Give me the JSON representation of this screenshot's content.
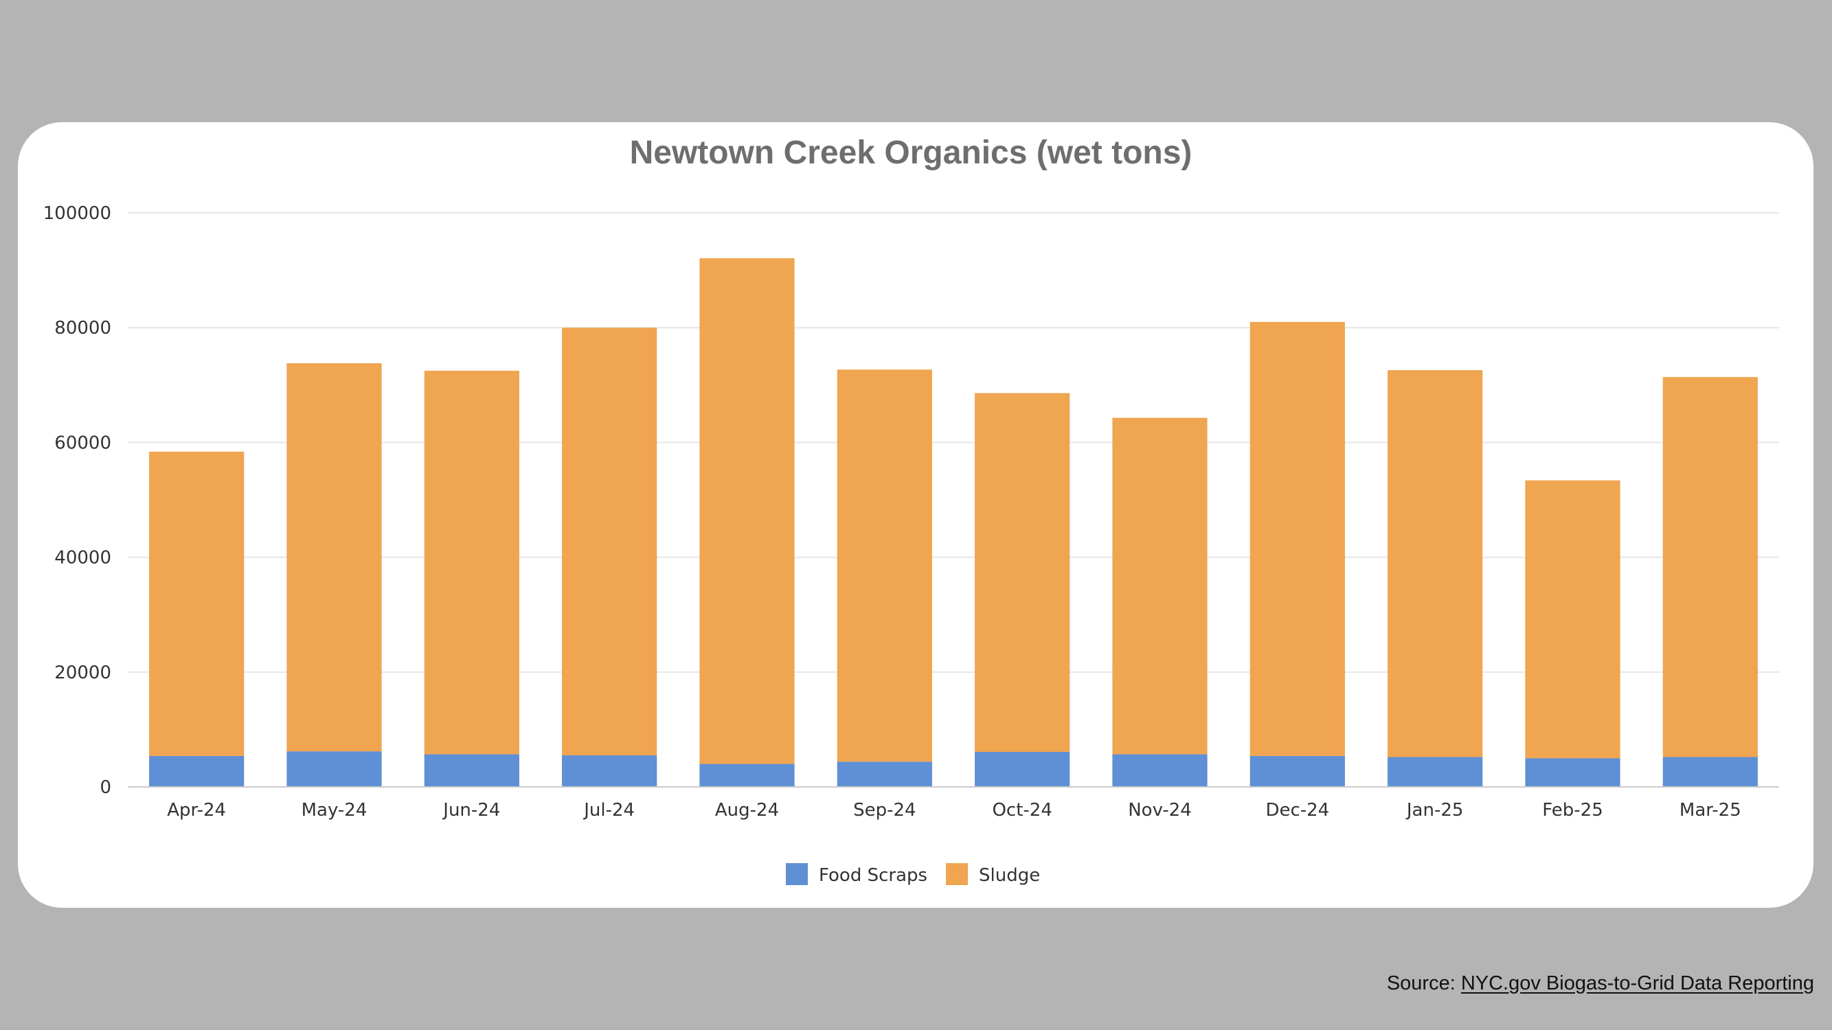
{
  "source": {
    "prefix": "Source: ",
    "link_text": "NYC.gov Biogas-to-Grid Data Reporting"
  },
  "colors": {
    "background": "#b4b4b4",
    "card": "#ffffff",
    "title": "#6e6e6e",
    "axis_text": "#333333",
    "grid": "#e6e6e6",
    "food_scraps": "#5f8fd4",
    "sludge": "#f0a551"
  },
  "chart_data": {
    "type": "bar",
    "stacked": true,
    "title": "Newtown Creek Organics (wet tons)",
    "xlabel": "",
    "ylabel": "",
    "ylim": [
      0,
      100000
    ],
    "yticks": [
      0,
      20000,
      40000,
      60000,
      80000,
      100000
    ],
    "grid": true,
    "legend_position": "bottom-center",
    "categories": [
      "Apr-24",
      "May-24",
      "Jun-24",
      "Jul-24",
      "Aug-24",
      "Sep-24",
      "Oct-24",
      "Nov-24",
      "Dec-24",
      "Jan-25",
      "Feb-25",
      "Mar-25"
    ],
    "series": [
      {
        "name": "Food Scraps",
        "color": "#5f8fd4",
        "values": [
          5400,
          6200,
          5700,
          5500,
          4000,
          4400,
          6100,
          5700,
          5400,
          5200,
          5000,
          5200
        ]
      },
      {
        "name": "Sludge",
        "color": "#f0a551",
        "values": [
          53000,
          67600,
          66800,
          74500,
          88100,
          68300,
          62500,
          58600,
          75600,
          67400,
          48400,
          66200
        ]
      }
    ]
  }
}
